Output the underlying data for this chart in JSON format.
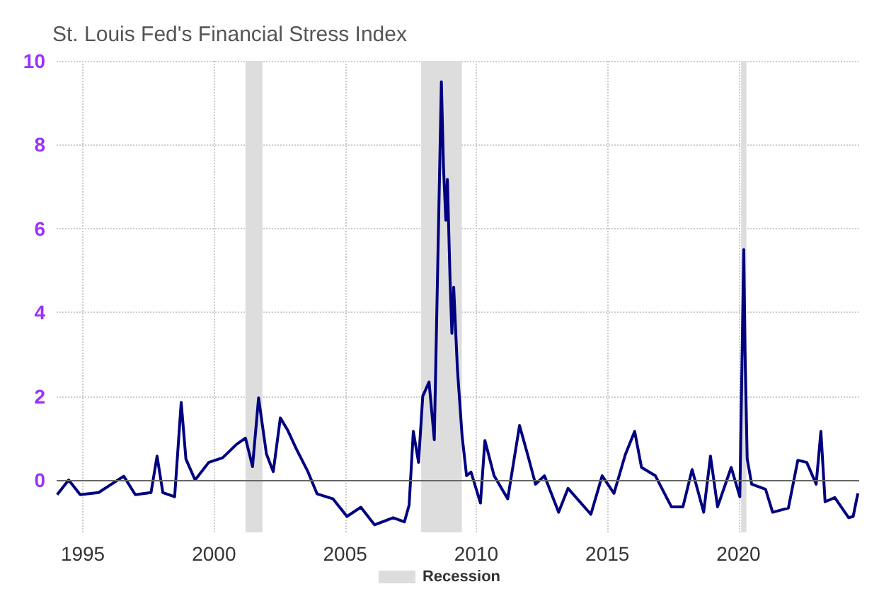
{
  "chart_data": {
    "type": "line",
    "subtitle": "St. Louis Fed's Financial Stress Index",
    "xlim": [
      1994,
      2024.6
    ],
    "xticks": [
      1995,
      2000,
      2005,
      2010,
      2015,
      2020
    ],
    "ylim": [
      -1.25,
      10
    ],
    "yticks": [
      0,
      2,
      4,
      6,
      8,
      10
    ],
    "grid": true,
    "legend": "bottom",
    "marker": "none",
    "line_style": "solid",
    "ref_lines": [
      {
        "axis": "y",
        "value": 0,
        "color": "#666666"
      }
    ],
    "bands": [
      {
        "axis": "x",
        "from": 2001.2,
        "to": 2001.85,
        "label": "Recession",
        "color": "#dddddd"
      },
      {
        "axis": "x",
        "from": 2007.9,
        "to": 2009.45,
        "color": "#dddddd"
      },
      {
        "axis": "x",
        "from": 2020.1,
        "to": 2020.3,
        "color": "#dddddd"
      }
    ],
    "series": [
      {
        "color": "#000080",
        "x": [
          1994.02,
          1994.46,
          1994.9,
          1995.6,
          1996.56,
          1997.0,
          1997.6,
          1997.83,
          1998.05,
          1998.5,
          1998.75,
          1998.93,
          1999.28,
          1999.8,
          2000.33,
          2000.86,
          2001.2,
          2001.47,
          2001.7,
          2002.0,
          2002.26,
          2002.53,
          2002.8,
          2003.14,
          2003.58,
          2003.93,
          2004.54,
          2005.07,
          2005.6,
          2006.12,
          2006.83,
          2007.26,
          2007.44,
          2007.6,
          2007.8,
          2007.96,
          2008.2,
          2008.4,
          2008.67,
          2008.75,
          2008.84,
          2008.9,
          2009.0,
          2009.07,
          2009.14,
          2009.28,
          2009.46,
          2009.63,
          2009.8,
          2010.16,
          2010.33,
          2010.68,
          2011.2,
          2011.65,
          2012.0,
          2012.26,
          2012.6,
          2013.14,
          2013.5,
          2014.37,
          2014.8,
          2015.25,
          2015.68,
          2016.04,
          2016.3,
          2016.83,
          2017.44,
          2017.88,
          2018.23,
          2018.67,
          2018.93,
          2019.2,
          2019.72,
          2020.05,
          2020.2,
          2020.25,
          2020.33,
          2020.5,
          2021.03,
          2021.3,
          2021.9,
          2022.26,
          2022.6,
          2022.96,
          2023.14,
          2023.3,
          2023.67,
          2024.2,
          2024.37,
          2024.55
        ],
        "values": [
          -0.35,
          0.0,
          -0.35,
          -0.3,
          0.09,
          -0.35,
          -0.3,
          0.57,
          -0.3,
          -0.4,
          1.85,
          0.5,
          0.0,
          0.42,
          0.53,
          0.85,
          1.0,
          0.32,
          1.96,
          0.62,
          0.2,
          1.48,
          1.2,
          0.74,
          0.2,
          -0.33,
          -0.45,
          -0.87,
          -0.65,
          -1.07,
          -0.9,
          -1.0,
          -0.6,
          1.16,
          0.42,
          2.0,
          2.34,
          0.96,
          9.5,
          7.48,
          6.2,
          7.17,
          4.8,
          3.5,
          4.6,
          2.66,
          1.05,
          0.1,
          0.19,
          -0.55,
          0.94,
          0.1,
          -0.45,
          1.3,
          0.51,
          -0.1,
          0.1,
          -0.77,
          -0.2,
          -0.82,
          0.1,
          -0.32,
          0.6,
          1.16,
          0.3,
          0.1,
          -0.64,
          -0.64,
          0.25,
          -0.77,
          0.57,
          -0.64,
          0.3,
          -0.4,
          5.5,
          3.0,
          0.51,
          -0.1,
          -0.22,
          -0.77,
          -0.67,
          0.47,
          0.42,
          -0.1,
          1.16,
          -0.52,
          -0.42,
          -0.9,
          -0.87,
          -0.32
        ]
      }
    ]
  }
}
